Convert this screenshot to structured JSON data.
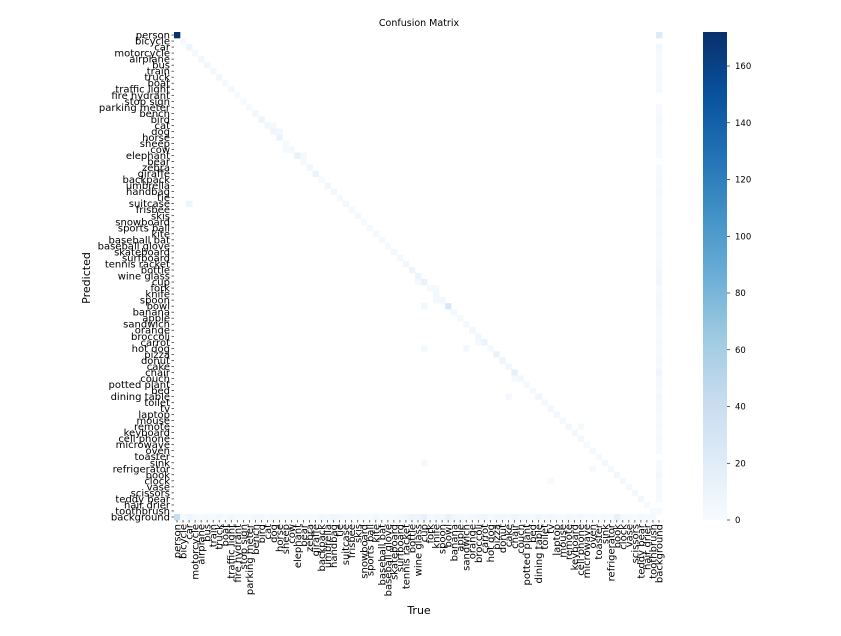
{
  "chart_data": {
    "type": "heatmap",
    "title": "Confusion Matrix",
    "xlabel": "True",
    "ylabel": "Predicted",
    "categories": [
      "person",
      "bicycle",
      "car",
      "motorcycle",
      "airplane",
      "bus",
      "train",
      "truck",
      "boat",
      "traffic light",
      "fire hydrant",
      "stop sign",
      "parking meter",
      "bench",
      "bird",
      "cat",
      "dog",
      "horse",
      "sheep",
      "cow",
      "elephant",
      "bear",
      "zebra",
      "giraffe",
      "backpack",
      "umbrella",
      "handbag",
      "tie",
      "suitcase",
      "frisbee",
      "skis",
      "snowboard",
      "sports ball",
      "kite",
      "baseball bat",
      "baseball glove",
      "skateboard",
      "surfboard",
      "tennis racket",
      "bottle",
      "wine glass",
      "cup",
      "fork",
      "knife",
      "spoon",
      "bowl",
      "banana",
      "apple",
      "sandwich",
      "orange",
      "broccoli",
      "carrot",
      "hot dog",
      "pizza",
      "donut",
      "cake",
      "chair",
      "couch",
      "potted plant",
      "bed",
      "dining table",
      "toilet",
      "tv",
      "laptop",
      "mouse",
      "remote",
      "keyboard",
      "cell phone",
      "microwave",
      "oven",
      "toaster",
      "sink",
      "refrigerator",
      "book",
      "clock",
      "vase",
      "scissors",
      "teddy bear",
      "hair drier",
      "toothbrush",
      "background"
    ],
    "vmin": 0,
    "vmax": 172,
    "colormap": [
      "#f7fbff",
      "#deebf7",
      "#c6dbef",
      "#9ecae1",
      "#6baed6",
      "#4292c6",
      "#2171b5",
      "#08519c",
      "#08306b"
    ],
    "colorbar_ticks": [
      0,
      20,
      40,
      60,
      80,
      100,
      120,
      140,
      160
    ],
    "diagonal": [
      172,
      3,
      8,
      4,
      6,
      5,
      4,
      6,
      3,
      4,
      2,
      2,
      3,
      5,
      9,
      7,
      8,
      10,
      3,
      4,
      12,
      3,
      6,
      10,
      2,
      5,
      4,
      3,
      4,
      2,
      3,
      2,
      3,
      3,
      3,
      3,
      4,
      4,
      5,
      8,
      8,
      12,
      3,
      4,
      5,
      25,
      3,
      3,
      4,
      6,
      5,
      10,
      3,
      12,
      8,
      6,
      15,
      5,
      4,
      3,
      8,
      4,
      5,
      4,
      3,
      5,
      4,
      4,
      2,
      3,
      1,
      4,
      3,
      5,
      4,
      3,
      4,
      6,
      1,
      2,
      0
    ],
    "background_row": [
      40,
      3,
      8,
      3,
      2,
      4,
      3,
      6,
      2,
      6,
      2,
      1,
      2,
      6,
      4,
      2,
      4,
      3,
      2,
      2,
      3,
      1,
      2,
      2,
      6,
      4,
      8,
      4,
      3,
      1,
      3,
      2,
      2,
      6,
      2,
      2,
      3,
      4,
      5,
      10,
      8,
      12,
      2,
      5,
      6,
      12,
      6,
      5,
      3,
      4,
      6,
      8,
      2,
      5,
      6,
      4,
      9,
      5,
      4,
      2,
      8,
      3,
      5,
      3,
      3,
      5,
      3,
      6,
      2,
      3,
      1,
      3,
      2,
      14,
      3,
      3,
      2,
      4,
      2,
      3,
      0
    ],
    "background_col": [
      22,
      0,
      4,
      2,
      1,
      2,
      1,
      3,
      2,
      3,
      0,
      0,
      1,
      2,
      4,
      1,
      2,
      2,
      1,
      1,
      1,
      0,
      1,
      1,
      3,
      3,
      4,
      2,
      2,
      1,
      2,
      1,
      2,
      3,
      1,
      1,
      1,
      2,
      3,
      6,
      5,
      7,
      1,
      3,
      4,
      5,
      3,
      2,
      2,
      2,
      2,
      3,
      1,
      3,
      4,
      3,
      8,
      3,
      3,
      2,
      6,
      2,
      3,
      2,
      2,
      3,
      2,
      3,
      1,
      1,
      0,
      2,
      1,
      5,
      2,
      2,
      1,
      2,
      0,
      1,
      0
    ],
    "off_diagonal": [
      {
        "pred": "dog",
        "true": "horse",
        "value": 4
      },
      {
        "pred": "cat",
        "true": "dog",
        "value": 3
      },
      {
        "pred": "elephant",
        "true": "bear",
        "value": 3
      },
      {
        "pred": "cow",
        "true": "sheep",
        "value": 2
      },
      {
        "pred": "suitcase",
        "true": "car",
        "value": 8
      },
      {
        "pred": "spoon",
        "true": "knife",
        "value": 3
      },
      {
        "pred": "fork",
        "true": "knife",
        "value": 2
      },
      {
        "pred": "bowl",
        "true": "cup",
        "value": 4
      },
      {
        "pred": "hot dog",
        "true": "cup",
        "value": 4
      },
      {
        "pred": "hot dog",
        "true": "sandwich",
        "value": 4
      },
      {
        "pred": "carrot",
        "true": "broccoli",
        "value": 3
      },
      {
        "pred": "dining table",
        "true": "cake",
        "value": 3
      },
      {
        "pred": "couch",
        "true": "chair",
        "value": 3
      },
      {
        "pred": "sink",
        "true": "cup",
        "value": 3
      },
      {
        "pred": "refrigerator",
        "true": "oven",
        "value": 2
      },
      {
        "pred": "cup",
        "true": "wine glass",
        "value": 3
      },
      {
        "pred": "clock",
        "true": "tv",
        "value": 2
      },
      {
        "pred": "remote",
        "true": "cell phone",
        "value": 3
      }
    ]
  }
}
